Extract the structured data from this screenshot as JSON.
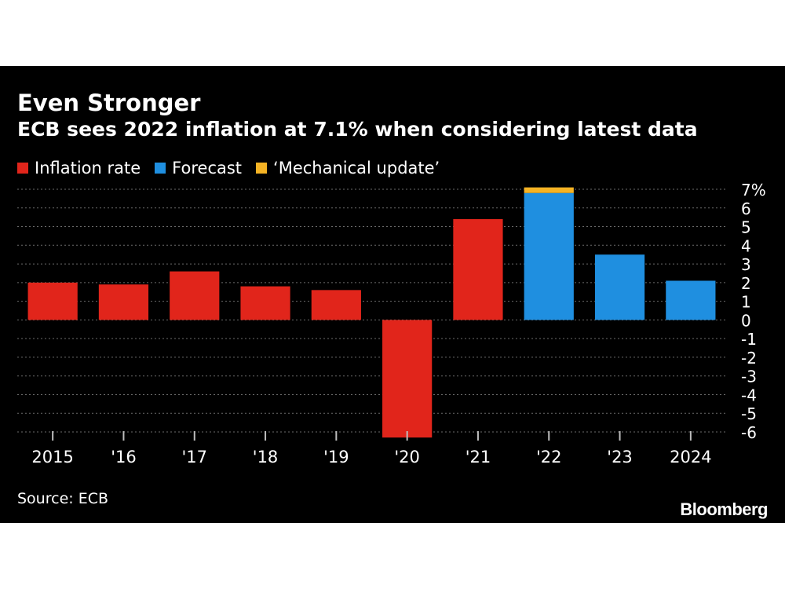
{
  "header": {
    "title": "Even Stronger",
    "subtitle": "ECB sees 2022 inflation at 7.1% when considering latest data"
  },
  "legend": [
    {
      "label": "Inflation rate",
      "color": "#e1251b"
    },
    {
      "label": "Forecast",
      "color": "#1f8fe0"
    },
    {
      "label": "‘Mechanical update’",
      "color": "#f5b324"
    }
  ],
  "footer": {
    "source": "Source: ECB",
    "brand": "Bloomberg"
  },
  "colors": {
    "background": "#000000",
    "grid": "#6b6b6b",
    "text": "#ffffff"
  },
  "chart_data": {
    "type": "bar",
    "stacked": true,
    "categories": [
      "2015",
      "'16",
      "'17",
      "'18",
      "'19",
      "'20",
      "'21",
      "'22",
      "'23",
      "2024"
    ],
    "series": [
      {
        "name": "Inflation rate",
        "color": "#e1251b",
        "values": [
          2.0,
          1.9,
          2.6,
          1.8,
          1.6,
          -6.3,
          5.4,
          null,
          null,
          null
        ]
      },
      {
        "name": "Forecast",
        "color": "#1f8fe0",
        "values": [
          null,
          null,
          null,
          null,
          null,
          null,
          null,
          6.8,
          3.5,
          2.1
        ]
      },
      {
        "name": "‘Mechanical update’",
        "color": "#f5b324",
        "values": [
          null,
          null,
          null,
          null,
          null,
          null,
          null,
          0.3,
          null,
          null
        ]
      }
    ],
    "ylim": [
      -6,
      7
    ],
    "yticks": [
      7,
      6,
      5,
      4,
      3,
      2,
      1,
      0,
      -1,
      -2,
      -3,
      -4,
      -5,
      -6
    ],
    "ytick_labels": [
      "7%",
      "6",
      "5",
      "4",
      "3",
      "2",
      "1",
      "0",
      "-1",
      "-2",
      "-3",
      "-4",
      "-5",
      "-6"
    ],
    "grid": true,
    "y_axis_position": "right",
    "legend_position": "top-left"
  }
}
